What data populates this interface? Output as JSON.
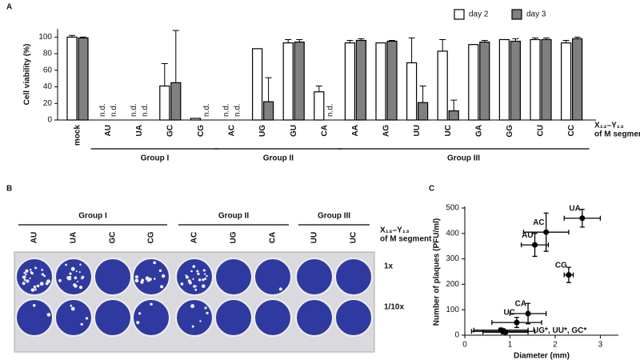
{
  "chart_data": [
    {
      "type": "bar",
      "panel_label": "A",
      "ylabel": "Cell viability (%)",
      "categories": [
        "mock",
        "AU",
        "UA",
        "GC",
        "CG",
        "AC",
        "UG",
        "GU",
        "CA",
        "AA",
        "AG",
        "UU",
        "UC",
        "GA",
        "GG",
        "CU",
        "CC"
      ],
      "series": [
        {
          "name": "day 2",
          "color": "#ffffff",
          "values": [
            100,
            null,
            null,
            41,
            2,
            null,
            86,
            93,
            34,
            93,
            93,
            69,
            83,
            91,
            97,
            97,
            93
          ],
          "errors": [
            2,
            null,
            null,
            27,
            null,
            null,
            null,
            4,
            7,
            3,
            null,
            30,
            14,
            null,
            null,
            2,
            3
          ],
          "value_labels": [
            null,
            "n.d.",
            "n.d.",
            null,
            null,
            "n.d.",
            null,
            null,
            null,
            null,
            null,
            null,
            null,
            null,
            null,
            null,
            null
          ]
        },
        {
          "name": "day 3",
          "color": "#808080",
          "values": [
            99,
            null,
            null,
            45,
            null,
            null,
            22,
            94,
            null,
            96,
            95,
            21,
            11,
            94,
            95,
            97,
            98
          ],
          "errors": [
            1,
            null,
            null,
            63,
            null,
            null,
            29,
            3,
            null,
            2,
            1,
            20,
            13,
            2,
            3,
            2,
            2
          ],
          "value_labels": [
            null,
            "n.d.",
            "n.d.",
            null,
            "n.d.",
            "n.d.",
            null,
            null,
            "n.d.",
            null,
            null,
            null,
            null,
            null,
            null,
            null,
            null
          ]
        }
      ],
      "ylim": [
        0,
        110
      ],
      "yticks": [
        0,
        20,
        40,
        60,
        80,
        100
      ],
      "legend": "top-right",
      "xlabel": [
        "X₁₄–Y₁₃",
        "of M segment"
      ],
      "groups": [
        {
          "label": "Group I",
          "categories": [
            "AU",
            "UA",
            "GC",
            "CG"
          ]
        },
        {
          "label": "Group II",
          "categories": [
            "AC",
            "UG",
            "GU",
            "CA"
          ]
        },
        {
          "label": "Group III",
          "categories": [
            "AA",
            "AG",
            "UU",
            "UC",
            "GA",
            "GG",
            "CU",
            "CC"
          ]
        }
      ]
    },
    {
      "type": "scatter",
      "panel_label": "C",
      "xlabel": "Diameter (mm)",
      "ylabel": "Number of plaques (PFU/ml)",
      "color": "#000000",
      "x": [
        2.6,
        1.8,
        1.55,
        2.3,
        1.4,
        1.15,
        0.85,
        0.8,
        0.9
      ],
      "y": [
        460,
        405,
        355,
        237,
        85,
        50,
        15,
        20,
        12
      ],
      "xerr": [
        0.4,
        0.5,
        0.3,
        0.1,
        0.4,
        0.55,
        0.7,
        0.6,
        0.5
      ],
      "yerr": [
        35,
        75,
        45,
        30,
        40,
        20,
        10,
        8,
        6
      ],
      "point_labels": [
        "UA",
        "AC",
        "AU",
        "CG",
        "CA",
        "UC",
        null,
        null,
        "UG*, UU*, GC*"
      ],
      "xlim": [
        0,
        3.4
      ],
      "xticks": [
        0,
        1,
        2,
        3
      ],
      "ylim": [
        0,
        500
      ],
      "yticks": [
        0,
        100,
        200,
        300,
        400,
        500
      ]
    }
  ],
  "panel_b": {
    "panel_label": "B",
    "groups": [
      {
        "label": "Group I",
        "wells": [
          "AU",
          "UA",
          "GC",
          "CG"
        ]
      },
      {
        "label": "Group II",
        "wells": [
          "AC",
          "UG",
          "CA"
        ]
      },
      {
        "label": "Group III",
        "wells": [
          "UU",
          "UC"
        ]
      }
    ],
    "xlabel": [
      "X₁₄–Y₁₃",
      "of M segment"
    ],
    "rows": [
      "1x",
      "1/10x"
    ]
  }
}
